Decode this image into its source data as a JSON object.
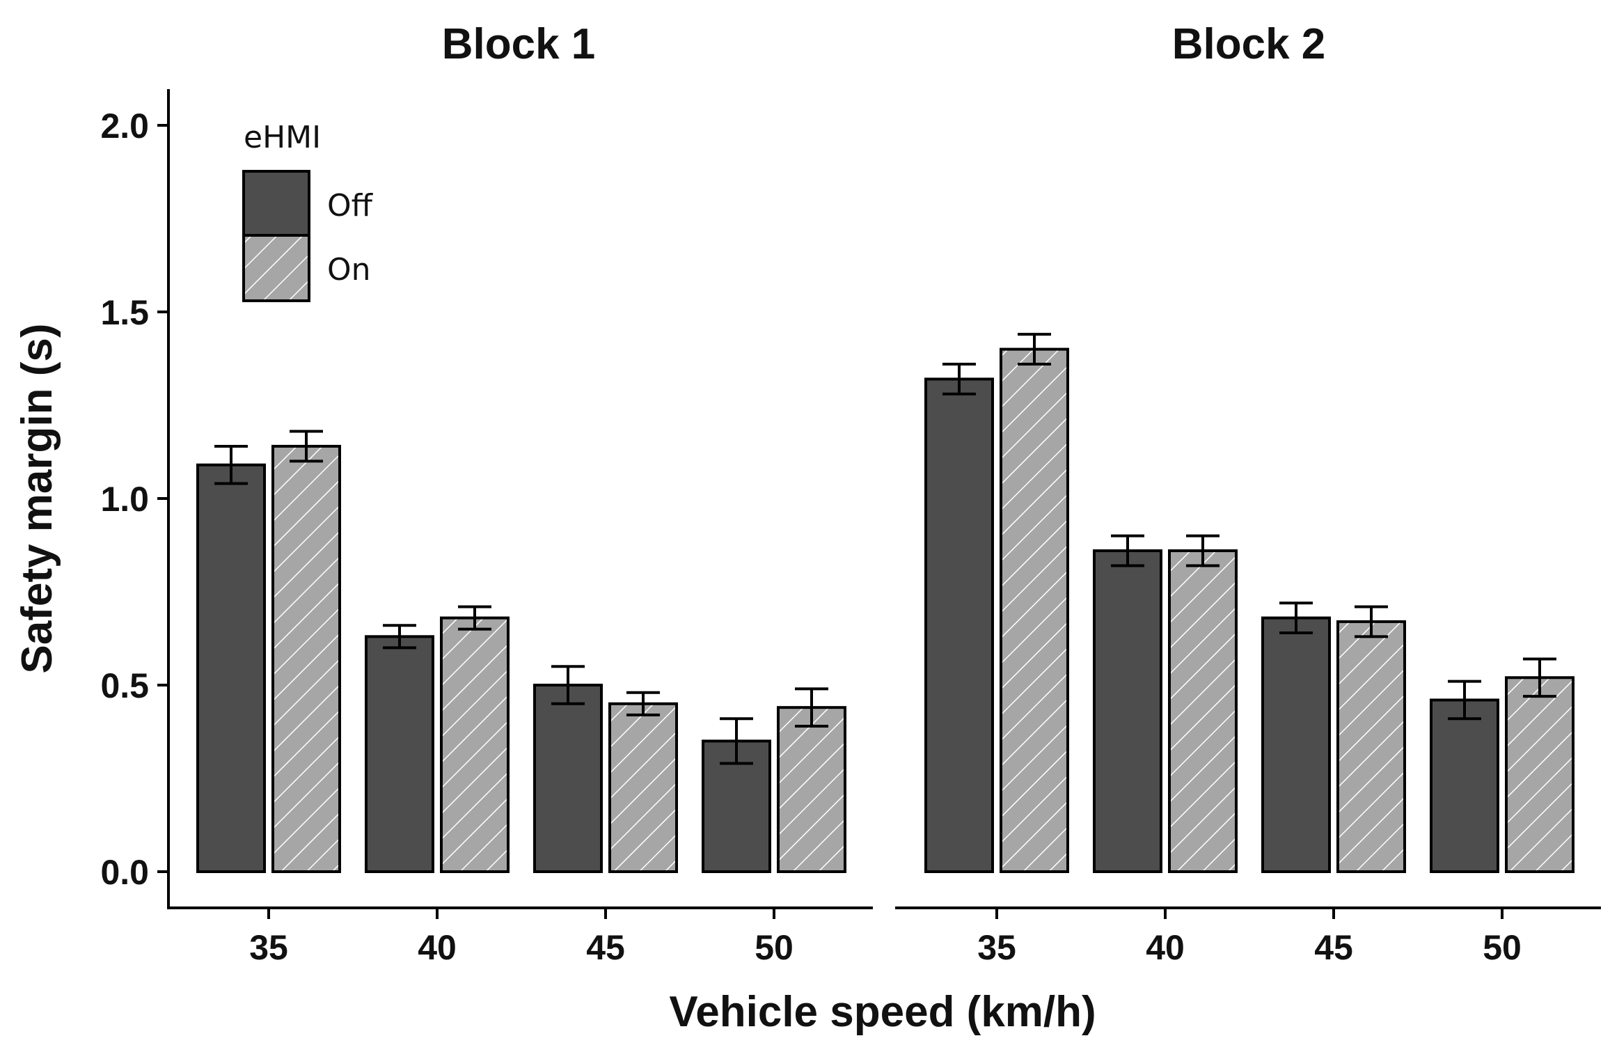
{
  "chart_data": {
    "type": "bar",
    "xlabel": "Vehicle speed (km/h)",
    "ylabel": "Safety margin (s)",
    "ylim": [
      0,
      2.0
    ],
    "yticks": [
      0.0,
      0.5,
      1.0,
      1.5,
      2.0
    ],
    "ytick_labels": [
      "0.0",
      "0.5",
      "1.0",
      "1.5",
      "2.0"
    ],
    "categories": [
      "35",
      "40",
      "45",
      "50"
    ],
    "legend": {
      "title": "eHMI",
      "entries": [
        "Off",
        "On"
      ],
      "position": "top-left"
    },
    "colors": {
      "Off": "#4d4d4d",
      "On": "#a6a6a6",
      "hatch": "#ffffff",
      "outline": "#000000"
    },
    "panels": [
      {
        "title": "Block 1",
        "series": [
          {
            "name": "Off",
            "values": [
              1.09,
              0.63,
              0.5,
              0.35
            ],
            "error": [
              0.05,
              0.03,
              0.05,
              0.06
            ]
          },
          {
            "name": "On",
            "values": [
              1.14,
              0.68,
              0.45,
              0.44
            ],
            "error": [
              0.04,
              0.03,
              0.03,
              0.05
            ]
          }
        ]
      },
      {
        "title": "Block 2",
        "series": [
          {
            "name": "Off",
            "values": [
              1.32,
              0.86,
              0.68,
              0.46
            ],
            "error": [
              0.04,
              0.04,
              0.04,
              0.05
            ]
          },
          {
            "name": "On",
            "values": [
              1.4,
              0.86,
              0.67,
              0.52
            ],
            "error": [
              0.04,
              0.04,
              0.04,
              0.05
            ]
          }
        ]
      }
    ]
  }
}
